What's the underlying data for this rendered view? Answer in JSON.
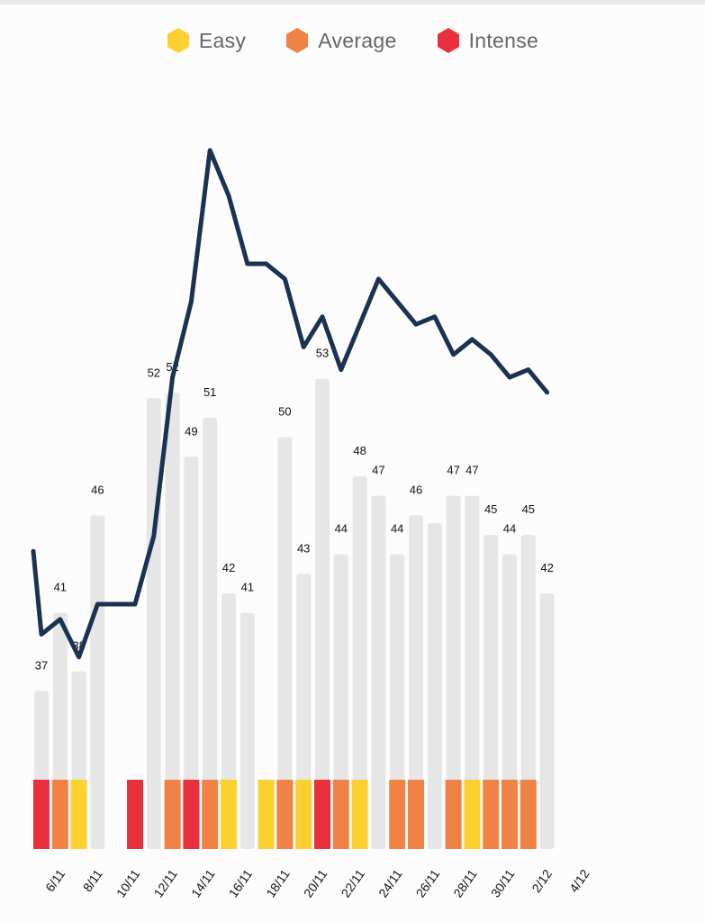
{
  "legend": [
    {
      "label": "Easy",
      "color": "#fcd02f"
    },
    {
      "label": "Average",
      "color": "#f08245"
    },
    {
      "label": "Intense",
      "color": "#e8313d"
    }
  ],
  "chart_data": {
    "type": "bar",
    "title": "",
    "xlabel": "",
    "ylabel": "",
    "x_tick_labels": [
      "6/11",
      "8/11",
      "10/11",
      "12/11",
      "14/11",
      "16/11",
      "18/11",
      "20/11",
      "22/11",
      "24/11",
      "26/11",
      "28/11",
      "30/11",
      "2/12",
      "4/12"
    ],
    "bar_color": "#e6e6e6",
    "bars": [
      {
        "day": "5/11",
        "value": 37,
        "label": "37",
        "intensity": "Intense"
      },
      {
        "day": "6/11",
        "value": 41,
        "label": "41",
        "intensity": "Average"
      },
      {
        "day": "7/11",
        "value": 38,
        "label": "38",
        "intensity": "Easy"
      },
      {
        "day": "8/11",
        "value": 46,
        "label": "46",
        "intensity": null
      },
      {
        "day": "9/11",
        "value": null,
        "label": "",
        "intensity": null
      },
      {
        "day": "10/11",
        "value": null,
        "label": "",
        "intensity": "Intense"
      },
      {
        "day": "11/11",
        "value": 52,
        "label": "52",
        "intensity": null
      },
      {
        "day": "12/11",
        "value": 52.3,
        "label": "52",
        "intensity": "Average"
      },
      {
        "day": "13/11",
        "value": 49,
        "label": "49",
        "intensity": "Intense"
      },
      {
        "day": "14/11",
        "value": 51,
        "label": "51",
        "intensity": "Average"
      },
      {
        "day": "15/11",
        "value": 42,
        "label": "42",
        "intensity": "Easy"
      },
      {
        "day": "16/11",
        "value": 41,
        "label": "41",
        "intensity": null
      },
      {
        "day": "17/11",
        "value": null,
        "label": "",
        "intensity": "Easy"
      },
      {
        "day": "18/11",
        "value": 50,
        "label": "50",
        "intensity": "Average"
      },
      {
        "day": "19/11",
        "value": 43,
        "label": "43",
        "intensity": "Easy"
      },
      {
        "day": "20/11",
        "value": 53,
        "label": "53",
        "intensity": "Intense"
      },
      {
        "day": "21/11",
        "value": 44,
        "label": "44",
        "intensity": "Average"
      },
      {
        "day": "22/11",
        "value": 48,
        "label": "48",
        "intensity": "Easy"
      },
      {
        "day": "23/11",
        "value": 47,
        "label": "47",
        "intensity": null
      },
      {
        "day": "24/11",
        "value": 44,
        "label": "44",
        "intensity": "Average"
      },
      {
        "day": "25/11",
        "value": 46,
        "label": "46",
        "intensity": "Average"
      },
      {
        "day": "26/11",
        "value": 45.6,
        "label": "",
        "intensity": null
      },
      {
        "day": "27/11",
        "value": 47,
        "label": "47",
        "intensity": "Average"
      },
      {
        "day": "28/11",
        "value": 47,
        "label": "47",
        "intensity": "Easy"
      },
      {
        "day": "29/11",
        "value": 45,
        "label": "45",
        "intensity": "Average"
      },
      {
        "day": "30/11",
        "value": 44,
        "label": "44",
        "intensity": "Average"
      },
      {
        "day": "1/12",
        "value": 45,
        "label": "45",
        "intensity": "Average"
      },
      {
        "day": "2/12",
        "value": 42,
        "label": "42",
        "intensity": null
      }
    ],
    "trend_line": {
      "color": "#1b3253",
      "points": [
        [
          "4/11",
          41.2
        ],
        [
          "5/11",
          40.1
        ],
        [
          "6/11",
          40.3
        ],
        [
          "7/11",
          39.8
        ],
        [
          "8/11",
          40.5
        ],
        [
          "9/11",
          40.5
        ],
        [
          "10/11",
          40.5
        ],
        [
          "11/11",
          41.4
        ],
        [
          "12/11",
          43.5
        ],
        [
          "13/11",
          44.5
        ],
        [
          "14/11",
          46.5
        ],
        [
          "15/11",
          45.9
        ],
        [
          "16/11",
          45.0
        ],
        [
          "17/11",
          45.0
        ],
        [
          "18/11",
          44.8
        ],
        [
          "19/11",
          43.9
        ],
        [
          "20/11",
          44.3
        ],
        [
          "21/11",
          43.6
        ],
        [
          "22/11",
          44.2
        ],
        [
          "23/11",
          44.8
        ],
        [
          "24/11",
          44.5
        ],
        [
          "25/11",
          44.2
        ],
        [
          "26/11",
          44.3
        ],
        [
          "27/11",
          43.8
        ],
        [
          "28/11",
          44.0
        ],
        [
          "29/11",
          43.8
        ],
        [
          "30/11",
          43.5
        ],
        [
          "1/12",
          43.6
        ],
        [
          "2/12",
          43.3
        ]
      ]
    }
  }
}
